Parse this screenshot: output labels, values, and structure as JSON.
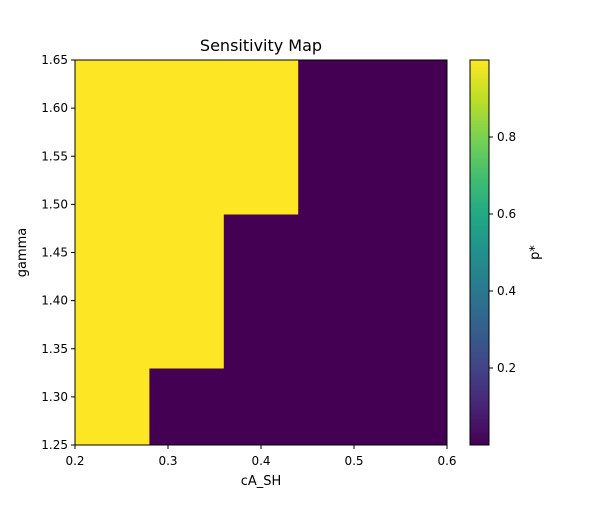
{
  "chart_data": {
    "type": "heatmap",
    "title": "Sensitivity Map",
    "xlabel": "cA_SH",
    "ylabel": "gamma",
    "xlim": [
      0.2,
      0.6
    ],
    "ylim": [
      1.25,
      1.65
    ],
    "x_ticks": [
      0.2,
      0.3,
      0.4,
      0.5,
      0.6
    ],
    "x_tick_labels": [
      "0.2",
      "0.3",
      "0.4",
      "0.5",
      "0.6"
    ],
    "y_ticks": [
      1.25,
      1.3,
      1.35,
      1.4,
      1.45,
      1.5,
      1.55,
      1.6,
      1.65
    ],
    "y_tick_labels": [
      "1.25",
      "1.30",
      "1.35",
      "1.40",
      "1.45",
      "1.50",
      "1.55",
      "1.60",
      "1.65"
    ],
    "x_edges": [
      0.2,
      0.28,
      0.36,
      0.44,
      0.52,
      0.6
    ],
    "y_edges": [
      1.25,
      1.33,
      1.41,
      1.49,
      1.57,
      1.65
    ],
    "z": [
      [
        1,
        0,
        0,
        0,
        0
      ],
      [
        1,
        1,
        0,
        0,
        0
      ],
      [
        1,
        1,
        0,
        0,
        0
      ],
      [
        1,
        1,
        1,
        0,
        0
      ],
      [
        1,
        1,
        1,
        0,
        0
      ]
    ],
    "colormap": "viridis",
    "colors": {
      "high": "#fde725",
      "low": "#440154"
    },
    "colorbar": {
      "label": "p*",
      "range": [
        0.0,
        1.0
      ],
      "ticks": [
        0.2,
        0.4,
        0.6,
        0.8
      ],
      "tick_labels": [
        "0.2",
        "0.4",
        "0.6",
        "0.8"
      ]
    },
    "grid": false,
    "legend": "none"
  }
}
